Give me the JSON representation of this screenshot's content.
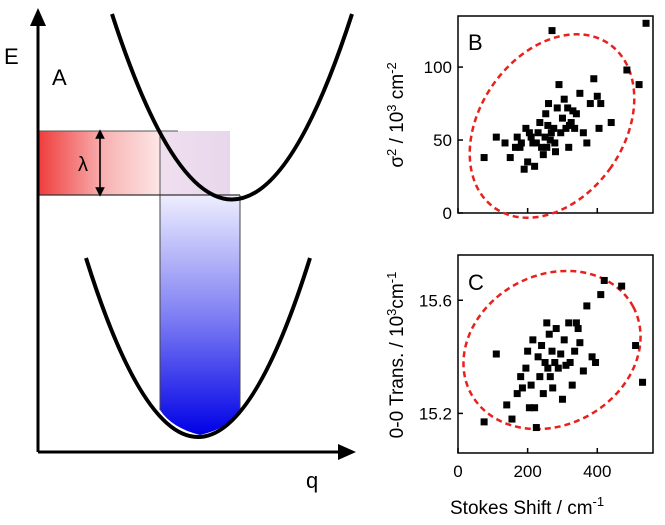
{
  "panelA": {
    "letter": "A",
    "y_axis_label": "E",
    "x_axis_label": "q",
    "lambda_label": "λ"
  },
  "chart_data": [
    {
      "type": "scatter",
      "panel": "B",
      "ylabel_base": "σ",
      "ylabel_sup": "2",
      "ylabel_mid": " / 10",
      "ylabel_sup2": "3",
      "ylabel_unit": " cm",
      "ylabel_sup3": "-2",
      "xlim": [
        0,
        560
      ],
      "ylim": [
        0,
        135
      ],
      "yticks": [
        0,
        50,
        100
      ],
      "xticks": [
        0,
        200,
        400
      ],
      "points": [
        [
          75,
          38
        ],
        [
          110,
          52
        ],
        [
          135,
          48
        ],
        [
          150,
          38
        ],
        [
          165,
          45
        ],
        [
          170,
          52
        ],
        [
          178,
          45
        ],
        [
          182,
          48
        ],
        [
          190,
          30
        ],
        [
          195,
          58
        ],
        [
          200,
          35
        ],
        [
          205,
          55
        ],
        [
          210,
          52
        ],
        [
          215,
          48
        ],
        [
          220,
          32
        ],
        [
          225,
          48
        ],
        [
          230,
          55
        ],
        [
          235,
          62
        ],
        [
          240,
          45
        ],
        [
          245,
          40
        ],
        [
          250,
          52
        ],
        [
          252,
          68
        ],
        [
          255,
          45
        ],
        [
          258,
          60
        ],
        [
          260,
          75
        ],
        [
          265,
          50
        ],
        [
          268,
          55
        ],
        [
          270,
          125
        ],
        [
          275,
          58
        ],
        [
          278,
          48
        ],
        [
          280,
          42
        ],
        [
          285,
          72
        ],
        [
          290,
          88
        ],
        [
          295,
          55
        ],
        [
          300,
          65
        ],
        [
          305,
          78
        ],
        [
          310,
          58
        ],
        [
          315,
          72
        ],
        [
          318,
          45
        ],
        [
          320,
          60
        ],
        [
          325,
          62
        ],
        [
          330,
          70
        ],
        [
          335,
          58
        ],
        [
          340,
          68
        ],
        [
          350,
          82
        ],
        [
          360,
          55
        ],
        [
          370,
          48
        ],
        [
          380,
          75
        ],
        [
          390,
          92
        ],
        [
          400,
          80
        ],
        [
          405,
          58
        ],
        [
          410,
          75
        ],
        [
          440,
          62
        ],
        [
          485,
          98
        ],
        [
          520,
          88
        ],
        [
          540,
          130
        ]
      ],
      "marker_color": "#000000",
      "ellipse_color": "#e8211c"
    },
    {
      "type": "scatter",
      "panel": "C",
      "ylabel_base": "0-0 Trans. / 10",
      "ylabel_sup": "3",
      "ylabel_unit": "cm",
      "ylabel_sup2": "-1",
      "xlabel_base": "Stokes Shift / cm",
      "xlabel_sup": "-1",
      "xlim": [
        0,
        560
      ],
      "ylim": [
        15.06,
        15.76
      ],
      "yticks": [
        15.2,
        15.6
      ],
      "ytick_labels": [
        "15.2",
        "15.6"
      ],
      "xticks": [
        0,
        200,
        400
      ],
      "points": [
        [
          75,
          15.17
        ],
        [
          110,
          15.41
        ],
        [
          140,
          15.23
        ],
        [
          155,
          15.18
        ],
        [
          170,
          15.27
        ],
        [
          180,
          15.33
        ],
        [
          185,
          15.29
        ],
        [
          195,
          15.36
        ],
        [
          200,
          15.42
        ],
        [
          205,
          15.22
        ],
        [
          210,
          15.3
        ],
        [
          215,
          15.46
        ],
        [
          220,
          15.22
        ],
        [
          225,
          15.15
        ],
        [
          230,
          15.4
        ],
        [
          235,
          15.33
        ],
        [
          240,
          15.44
        ],
        [
          245,
          15.27
        ],
        [
          250,
          15.38
        ],
        [
          255,
          15.52
        ],
        [
          258,
          15.36
        ],
        [
          262,
          15.48
        ],
        [
          265,
          15.33
        ],
        [
          270,
          15.42
        ],
        [
          272,
          15.29
        ],
        [
          278,
          15.38
        ],
        [
          282,
          15.5
        ],
        [
          288,
          15.36
        ],
        [
          295,
          15.41
        ],
        [
          300,
          15.25
        ],
        [
          305,
          15.46
        ],
        [
          310,
          15.37
        ],
        [
          318,
          15.52
        ],
        [
          322,
          15.38
        ],
        [
          328,
          15.3
        ],
        [
          335,
          15.42
        ],
        [
          340,
          15.52
        ],
        [
          345,
          15.5
        ],
        [
          350,
          15.45
        ],
        [
          360,
          15.35
        ],
        [
          370,
          15.58
        ],
        [
          385,
          15.4
        ],
        [
          395,
          15.38
        ],
        [
          410,
          15.62
        ],
        [
          420,
          15.67
        ],
        [
          470,
          15.65
        ],
        [
          510,
          15.44
        ],
        [
          530,
          15.31
        ]
      ],
      "marker_color": "#000000",
      "ellipse_color": "#e8211c"
    }
  ]
}
